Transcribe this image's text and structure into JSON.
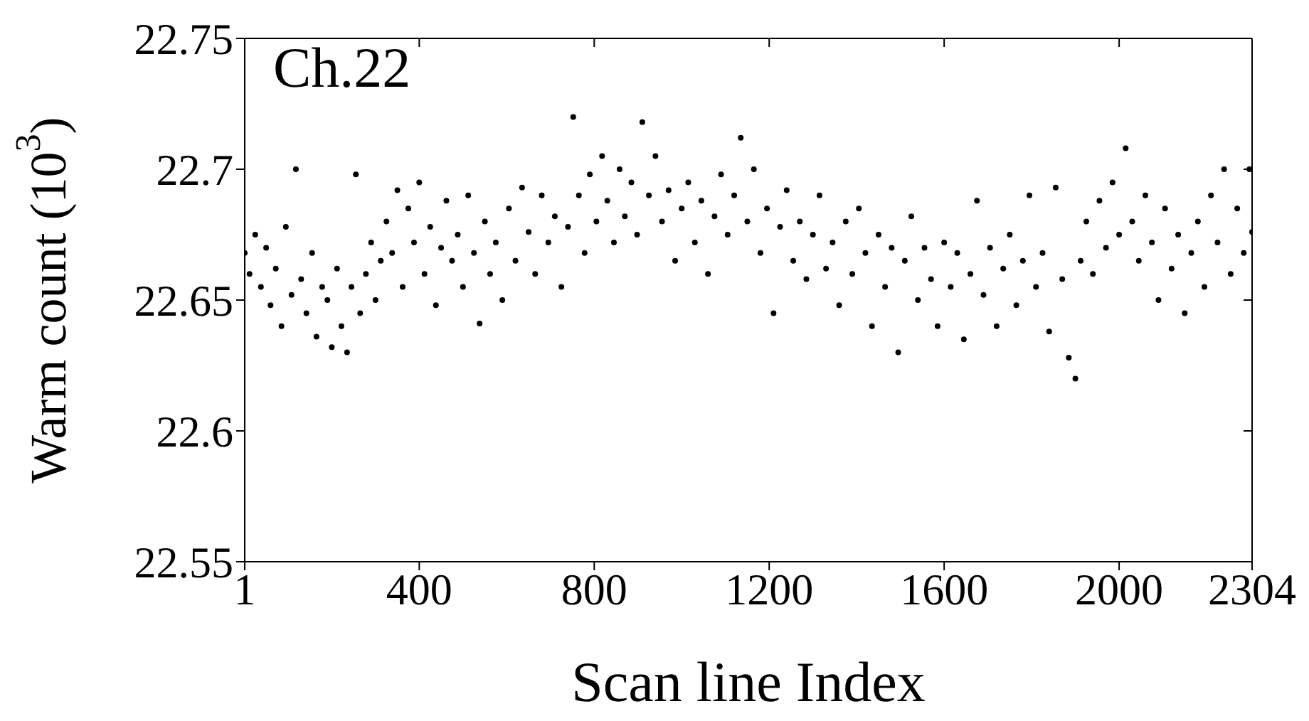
{
  "chart_data": {
    "type": "scatter",
    "title": "Ch.22",
    "xlabel": "Scan line Index",
    "ylabel": "Warm count (10$^{3}$)",
    "x": [
      1,
      12,
      25,
      38,
      50,
      60,
      72,
      85,
      95,
      108,
      118,
      130,
      142,
      155,
      165,
      178,
      190,
      200,
      212,
      222,
      235,
      245,
      255,
      265,
      278,
      290,
      300,
      312,
      325,
      338,
      350,
      362,
      375,
      388,
      400,
      412,
      425,
      438,
      450,
      462,
      475,
      488,
      500,
      512,
      525,
      538,
      550,
      562,
      575,
      590,
      605,
      620,
      635,
      650,
      665,
      680,
      695,
      710,
      725,
      740,
      752,
      765,
      778,
      790,
      805,
      818,
      830,
      845,
      858,
      870,
      885,
      898,
      910,
      925,
      940,
      955,
      970,
      985,
      1000,
      1015,
      1030,
      1045,
      1060,
      1075,
      1090,
      1105,
      1120,
      1135,
      1150,
      1165,
      1180,
      1195,
      1210,
      1225,
      1240,
      1255,
      1270,
      1285,
      1300,
      1315,
      1330,
      1345,
      1360,
      1375,
      1390,
      1405,
      1420,
      1435,
      1450,
      1465,
      1480,
      1495,
      1510,
      1525,
      1540,
      1555,
      1570,
      1585,
      1600,
      1615,
      1630,
      1645,
      1660,
      1675,
      1690,
      1705,
      1720,
      1735,
      1750,
      1765,
      1780,
      1795,
      1810,
      1825,
      1840,
      1855,
      1870,
      1885,
      1900,
      1912,
      1925,
      1940,
      1955,
      1970,
      1985,
      2000,
      2015,
      2030,
      2045,
      2060,
      2075,
      2090,
      2105,
      2120,
      2135,
      2150,
      2165,
      2180,
      2195,
      2210,
      2225,
      2240,
      2255,
      2270,
      2285,
      2298,
      2304
    ],
    "values": [
      22.668,
      22.66,
      22.675,
      22.655,
      22.67,
      22.648,
      22.662,
      22.64,
      22.678,
      22.652,
      22.7,
      22.658,
      22.645,
      22.668,
      22.636,
      22.655,
      22.65,
      22.632,
      22.662,
      22.64,
      22.63,
      22.655,
      22.698,
      22.645,
      22.66,
      22.672,
      22.65,
      22.665,
      22.68,
      22.668,
      22.692,
      22.655,
      22.685,
      22.672,
      22.695,
      22.66,
      22.678,
      22.648,
      22.67,
      22.688,
      22.665,
      22.675,
      22.655,
      22.69,
      22.668,
      22.641,
      22.68,
      22.66,
      22.672,
      22.65,
      22.685,
      22.665,
      22.693,
      22.676,
      22.66,
      22.69,
      22.672,
      22.682,
      22.655,
      22.678,
      22.72,
      22.69,
      22.668,
      22.698,
      22.68,
      22.705,
      22.688,
      22.672,
      22.7,
      22.682,
      22.695,
      22.675,
      22.718,
      22.69,
      22.705,
      22.68,
      22.692,
      22.665,
      22.685,
      22.695,
      22.672,
      22.688,
      22.66,
      22.682,
      22.698,
      22.675,
      22.69,
      22.712,
      22.68,
      22.7,
      22.668,
      22.685,
      22.645,
      22.678,
      22.692,
      22.665,
      22.68,
      22.658,
      22.675,
      22.69,
      22.662,
      22.672,
      22.648,
      22.68,
      22.66,
      22.685,
      22.668,
      22.64,
      22.675,
      22.655,
      22.67,
      22.63,
      22.665,
      22.682,
      22.65,
      22.67,
      22.658,
      22.64,
      22.672,
      22.655,
      22.668,
      22.635,
      22.66,
      22.688,
      22.652,
      22.67,
      22.64,
      22.662,
      22.675,
      22.648,
      22.665,
      22.69,
      22.655,
      22.668,
      22.638,
      22.693,
      22.658,
      22.628,
      22.62,
      22.665,
      22.68,
      22.66,
      22.688,
      22.67,
      22.695,
      22.675,
      22.708,
      22.68,
      22.665,
      22.69,
      22.672,
      22.65,
      22.685,
      22.662,
      22.675,
      22.645,
      22.668,
      22.68,
      22.655,
      22.69,
      22.672,
      22.7,
      22.66,
      22.685,
      22.668,
      22.7,
      22.676
    ],
    "color": "#000000",
    "marker": "circle",
    "xlim": [
      1,
      2304
    ],
    "xticks": [
      1,
      400,
      800,
      1200,
      1600,
      2000,
      2304
    ],
    "ylim": [
      22.55,
      22.75
    ],
    "yticks": [
      22.55,
      22.6,
      22.65,
      22.7,
      22.75
    ]
  }
}
